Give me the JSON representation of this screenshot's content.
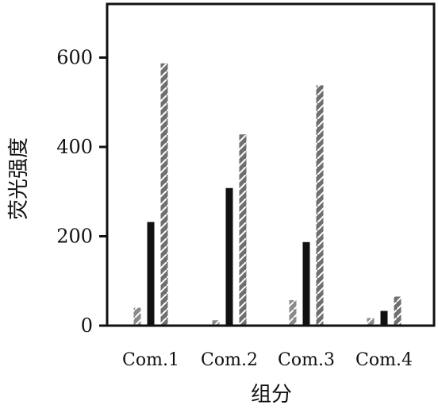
{
  "chart_data": {
    "type": "bar",
    "title": "",
    "xlabel": "组分",
    "ylabel": "荧光强度",
    "categories": [
      "Com.1",
      "Com.2",
      "Com.3",
      "Com.4"
    ],
    "series": [
      {
        "values": [
          40,
          12,
          57,
          17
        ],
        "pattern": "light-hatch",
        "color": "#8a8a8a"
      },
      {
        "values": [
          232,
          308,
          187,
          33
        ],
        "pattern": "solid",
        "color": "#111111"
      },
      {
        "values": [
          587,
          428,
          538,
          65
        ],
        "pattern": "dark-hatch",
        "color": "#6f6f6f"
      }
    ],
    "ylim": [
      0,
      720
    ],
    "yticks": [
      0,
      200,
      400,
      600
    ],
    "grid": false,
    "legend": "none"
  }
}
